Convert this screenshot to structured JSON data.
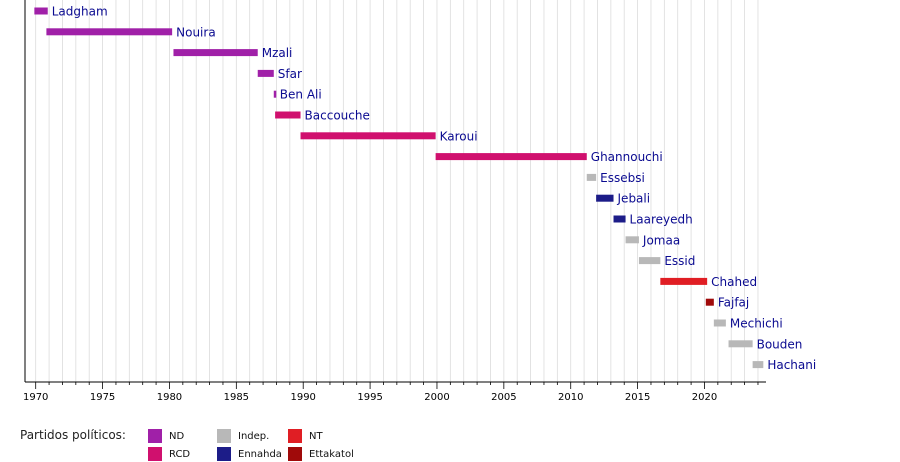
{
  "chart_data": {
    "type": "bar",
    "orientation": "horizontal-timeline",
    "xlim": [
      1969.2,
      2024.6
    ],
    "x_ticks": [
      1970,
      1975,
      1980,
      1985,
      1990,
      1995,
      2000,
      2005,
      2010,
      2015,
      2020
    ],
    "x_tick_labels": [
      "1970",
      "1975",
      "1980",
      "1985",
      "1990",
      "1995",
      "2000",
      "2005",
      "2010",
      "2015",
      "2020"
    ],
    "grid": "vertical-yearly",
    "series": [
      {
        "name": "Ladgham",
        "start": 1969.9,
        "end": 1970.9,
        "party": "ND"
      },
      {
        "name": "Nouira",
        "start": 1970.8,
        "end": 1980.2,
        "party": "ND"
      },
      {
        "name": "Mzali",
        "start": 1980.3,
        "end": 1986.6,
        "party": "ND"
      },
      {
        "name": "Sfar",
        "start": 1986.6,
        "end": 1987.8,
        "party": "ND"
      },
      {
        "name": "Ben Ali",
        "start": 1987.8,
        "end": 1987.95,
        "party": "ND"
      },
      {
        "name": "Baccouche",
        "start": 1987.9,
        "end": 1989.8,
        "party": "RCD"
      },
      {
        "name": "Karoui",
        "start": 1989.8,
        "end": 1999.9,
        "party": "RCD"
      },
      {
        "name": "Ghannouchi",
        "start": 1999.9,
        "end": 2011.2,
        "party": "RCD"
      },
      {
        "name": "Essebsi",
        "start": 2011.2,
        "end": 2011.9,
        "party": "Indep."
      },
      {
        "name": "Jebali",
        "start": 2011.9,
        "end": 2013.2,
        "party": "Ennahda"
      },
      {
        "name": "Laareyedh",
        "start": 2013.2,
        "end": 2014.1,
        "party": "Ennahda"
      },
      {
        "name": "Jomaa",
        "start": 2014.1,
        "end": 2015.1,
        "party": "Indep."
      },
      {
        "name": "Essid",
        "start": 2015.1,
        "end": 2016.7,
        "party": "Indep."
      },
      {
        "name": "Chahed",
        "start": 2016.7,
        "end": 2020.2,
        "party": "NT"
      },
      {
        "name": "Fajfaj",
        "start": 2020.1,
        "end": 2020.7,
        "party": "Ettakatol"
      },
      {
        "name": "Mechichi",
        "start": 2020.7,
        "end": 2021.6,
        "party": "Indep."
      },
      {
        "name": "Bouden",
        "start": 2021.8,
        "end": 2023.6,
        "party": "Indep."
      },
      {
        "name": "Hachani",
        "start": 2023.6,
        "end": 2024.4,
        "party": "Indep."
      }
    ],
    "legend": {
      "title": "Partidos políticos:",
      "placement": "bottom-left",
      "entries": [
        {
          "label": "ND",
          "color": "#a020a8"
        },
        {
          "label": "RCD",
          "color": "#d0106e"
        },
        {
          "label": "Indep.",
          "color": "#b8b8b8"
        },
        {
          "label": "Ennahda",
          "color": "#1c1c88"
        },
        {
          "label": "NT",
          "color": "#e01e24"
        },
        {
          "label": "Ettakatol",
          "color": "#a00a0a"
        }
      ]
    },
    "colors": {
      "label_text": "#0a0a90",
      "axis": "#000000",
      "grid": "#dcdcdc"
    }
  }
}
